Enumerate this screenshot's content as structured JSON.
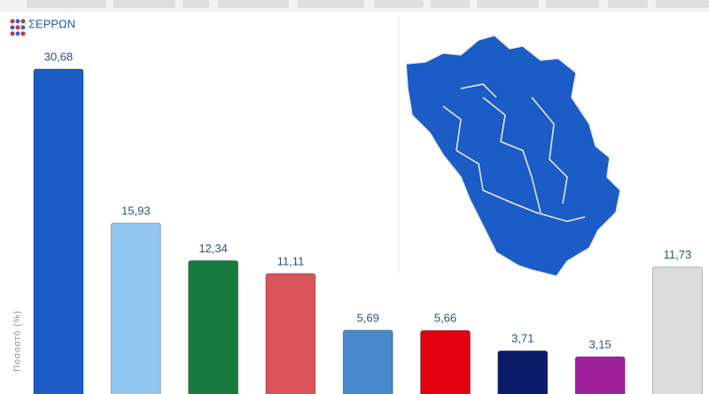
{
  "chart_data": {
    "type": "bar",
    "title": "ΣΕΡΡΩΝ",
    "y_label": "Ποσοστό (%)",
    "values": [
      30.68,
      15.93,
      12.34,
      11.11,
      5.69,
      5.66,
      3.71,
      3.15,
      11.73
    ],
    "value_labels": [
      "30,68",
      "15,93",
      "12,34",
      "11,11",
      "5,69",
      "5,66",
      "3,71",
      "3,15",
      "11,73"
    ],
    "colors": [
      "#1b5cc6",
      "#93c6ee",
      "#177a3f",
      "#d9555b",
      "#4589cc",
      "#e2000f",
      "#0b1a68",
      "#a0209b",
      "#dcdcdc"
    ]
  }
}
